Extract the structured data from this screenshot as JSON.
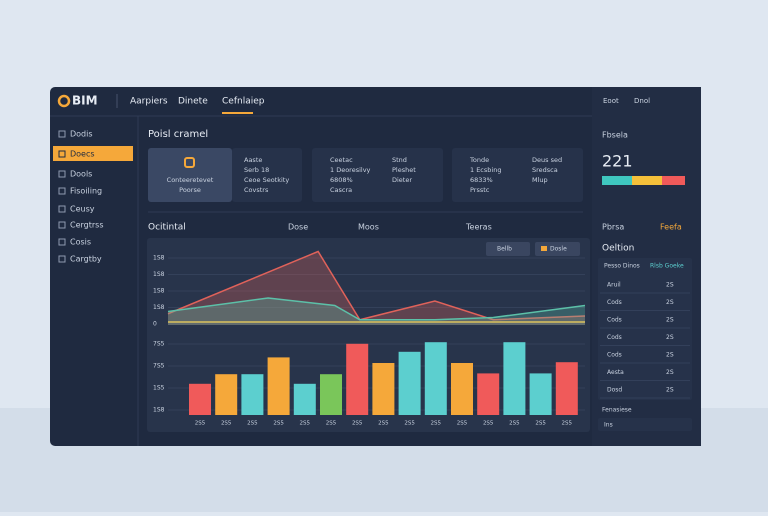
{
  "topbar": {
    "logo": "BIM",
    "tabs": [
      "Aarpiers",
      "Dinete",
      "Cefnlaiep"
    ],
    "actions": [
      "Eoot",
      "Dnol"
    ]
  },
  "sidebar": {
    "items": [
      "Dodis",
      "Doecs",
      "Dools",
      "Fisoiling",
      "Ceusy",
      "Cergtrss",
      "Cosis",
      "Cargtby"
    ]
  },
  "header": "Poisl cramel",
  "cards": [
    {
      "lines": [
        "Conteeretevet",
        "Poorse"
      ]
    },
    {
      "lines": [
        "Aaste",
        "Serb 18",
        "Ceoe Seotkity",
        "Covstrs"
      ]
    },
    {
      "lines": [
        "Ceetac",
        "1 Deoresilvy",
        "6808%",
        "Cascra"
      ]
    },
    {
      "lines": [
        "Stnd",
        "Pleshet",
        "Dieter"
      ]
    },
    {
      "lines": [
        "Tonde",
        "1 Ecsbing",
        "6833%",
        "Prsstc"
      ]
    },
    {
      "lines": [
        "Deus sed",
        "Sredsca",
        "Mlup"
      ]
    }
  ],
  "chart_tabs": [
    "Ocitintal",
    "Dose",
    "Moos",
    "Teeras"
  ],
  "legend": [
    "Bellb",
    "Dosle"
  ],
  "area_chart": {
    "type": "line",
    "yticks_labels": [
      "1S8",
      "1S8",
      "1S8",
      "1S8",
      "0"
    ],
    "xlim": [
      0,
      100
    ],
    "ylim": [
      0,
      100
    ],
    "series": [
      {
        "color": "#e0625a",
        "x": [
          0,
          36,
          46,
          64,
          78,
          100
        ],
        "values": [
          15,
          98,
          7,
          32,
          7,
          12
        ]
      },
      {
        "color": "#5cc0a8",
        "x": [
          0,
          24,
          40,
          46,
          64,
          78,
          100
        ],
        "values": [
          18,
          36,
          26,
          7,
          7,
          10,
          26
        ]
      }
    ]
  },
  "bar_chart": {
    "type": "bar",
    "yticks_labels": [
      "7S5",
      "7S5",
      "1S5",
      "1S8"
    ],
    "ylim": [
      0,
      100
    ],
    "categories": [
      "2S5",
      "2S5",
      "2S5",
      "2S5",
      "2S5",
      "2S5",
      "2S5",
      "2S5",
      "2S5",
      "2S5",
      "2S5",
      "2S5",
      "2S5",
      "2S5",
      "2S5"
    ],
    "values": [
      39,
      51,
      51,
      72,
      39,
      51,
      89,
      65,
      79,
      91,
      65,
      52,
      91,
      52,
      66
    ],
    "colors": [
      "#f05a5a",
      "#f5a83a",
      "#5ccfcf",
      "#f5a83a",
      "#5ccfcf",
      "#7ac65a",
      "#f05a5a",
      "#f5a83a",
      "#5ccfcf",
      "#5ccfcf",
      "#f5a83a",
      "#f05a5a",
      "#5ccfcf",
      "#5ccfcf",
      "#f05a5a"
    ]
  },
  "right": {
    "title": "Fbsela",
    "value": "221",
    "sub": "Pbrsa",
    "sub_link": "Feefa",
    "section": "Oeltion",
    "table_head": [
      "Pesso Dinos",
      "Rlsb Goeke"
    ],
    "rows": [
      [
        "Aruil",
        "2S"
      ],
      [
        "Cods",
        "2S"
      ],
      [
        "Cods",
        "2S"
      ],
      [
        "Cods",
        "2S"
      ],
      [
        "Cods",
        "2S"
      ],
      [
        "Aesta",
        "2S"
      ],
      [
        "Dosd",
        "2S"
      ]
    ],
    "footer": "Fenasiese",
    "input": "Ins"
  }
}
